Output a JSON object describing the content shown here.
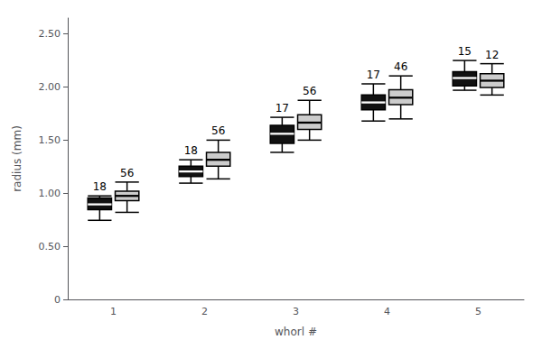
{
  "chart_data": {
    "type": "boxplot",
    "xlabel": "whorl #",
    "ylabel": "radius (mm)",
    "categories": [
      "1",
      "2",
      "3",
      "4",
      "5"
    ],
    "series": [
      {
        "color": "#111111",
        "values": [
          [
            0.745,
            0.845,
            0.895,
            0.955,
            0.975
          ],
          [
            1.095,
            1.158,
            1.205,
            1.255,
            1.315
          ],
          [
            1.385,
            1.47,
            1.56,
            1.64,
            1.715
          ],
          [
            1.68,
            1.785,
            1.855,
            1.925,
            2.03
          ],
          [
            1.97,
            2.01,
            2.085,
            2.145,
            2.25
          ]
        ],
        "counts": [
          18,
          18,
          17,
          17,
          15
        ]
      },
      {
        "color": "#cccccc",
        "values": [
          [
            0.82,
            0.93,
            0.975,
            1.02,
            1.105
          ],
          [
            1.135,
            1.255,
            1.315,
            1.385,
            1.5
          ],
          [
            1.5,
            1.6,
            1.665,
            1.74,
            1.875
          ],
          [
            1.7,
            1.835,
            1.9,
            1.975,
            2.105
          ],
          [
            1.925,
            1.995,
            2.06,
            2.125,
            2.22
          ]
        ],
        "counts": [
          56,
          56,
          56,
          46,
          12
        ]
      }
    ],
    "ylim": [
      0,
      2.65
    ],
    "yticks": [
      0,
      {
        "value": 0.5,
        "label": "0.50"
      },
      {
        "value": 1.0,
        "label": "1.00"
      },
      {
        "value": 1.5,
        "label": "1.50"
      },
      {
        "value": 2.0,
        "label": "2.00"
      },
      {
        "value": 2.5,
        "label": "2.50"
      }
    ],
    "grid": false
  }
}
